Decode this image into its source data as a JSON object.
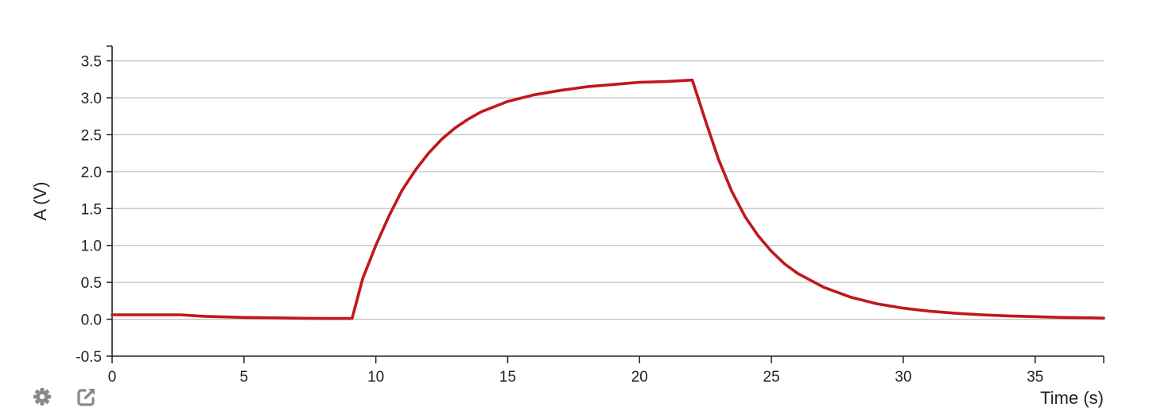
{
  "chart_data": {
    "type": "line",
    "title": "",
    "xlabel": "Time (s)",
    "ylabel": "A (V)",
    "xlim": [
      0,
      37.6
    ],
    "ylim": [
      -0.5,
      3.7
    ],
    "x_ticks": [
      0,
      5,
      10,
      15,
      20,
      25,
      30,
      35
    ],
    "y_ticks": [
      "-0.5",
      "0.0",
      "0.5",
      "1.0",
      "1.5",
      "2.0",
      "2.5",
      "3.0",
      "3.5"
    ],
    "grid": true,
    "series": [
      {
        "name": "",
        "color": "#c0171d",
        "x": [
          0,
          1,
          2,
          2.6,
          3.5,
          4.5,
          5,
          6,
          7,
          8,
          9.1,
          9.5,
          10,
          10.5,
          11,
          11.5,
          12,
          12.5,
          13,
          13.5,
          14,
          15,
          16,
          17,
          18,
          19,
          20,
          21,
          22,
          22.5,
          23,
          23.5,
          24,
          24.5,
          25,
          25.5,
          26,
          27,
          28,
          29,
          30,
          31,
          32,
          33,
          34,
          35,
          36,
          37,
          37.6
        ],
        "y": [
          0.06,
          0.06,
          0.06,
          0.06,
          0.04,
          0.03,
          0.025,
          0.02,
          0.015,
          0.01,
          0.01,
          0.55,
          1.0,
          1.4,
          1.75,
          2.02,
          2.25,
          2.44,
          2.59,
          2.71,
          2.81,
          2.95,
          3.04,
          3.1,
          3.15,
          3.18,
          3.21,
          3.22,
          3.24,
          2.69,
          2.16,
          1.73,
          1.39,
          1.13,
          0.92,
          0.75,
          0.62,
          0.43,
          0.3,
          0.21,
          0.15,
          0.11,
          0.08,
          0.06,
          0.045,
          0.035,
          0.025,
          0.02,
          0.015
        ]
      }
    ]
  },
  "toolbar": {
    "settings_icon": "gear-icon",
    "export_icon": "external-link-icon"
  }
}
